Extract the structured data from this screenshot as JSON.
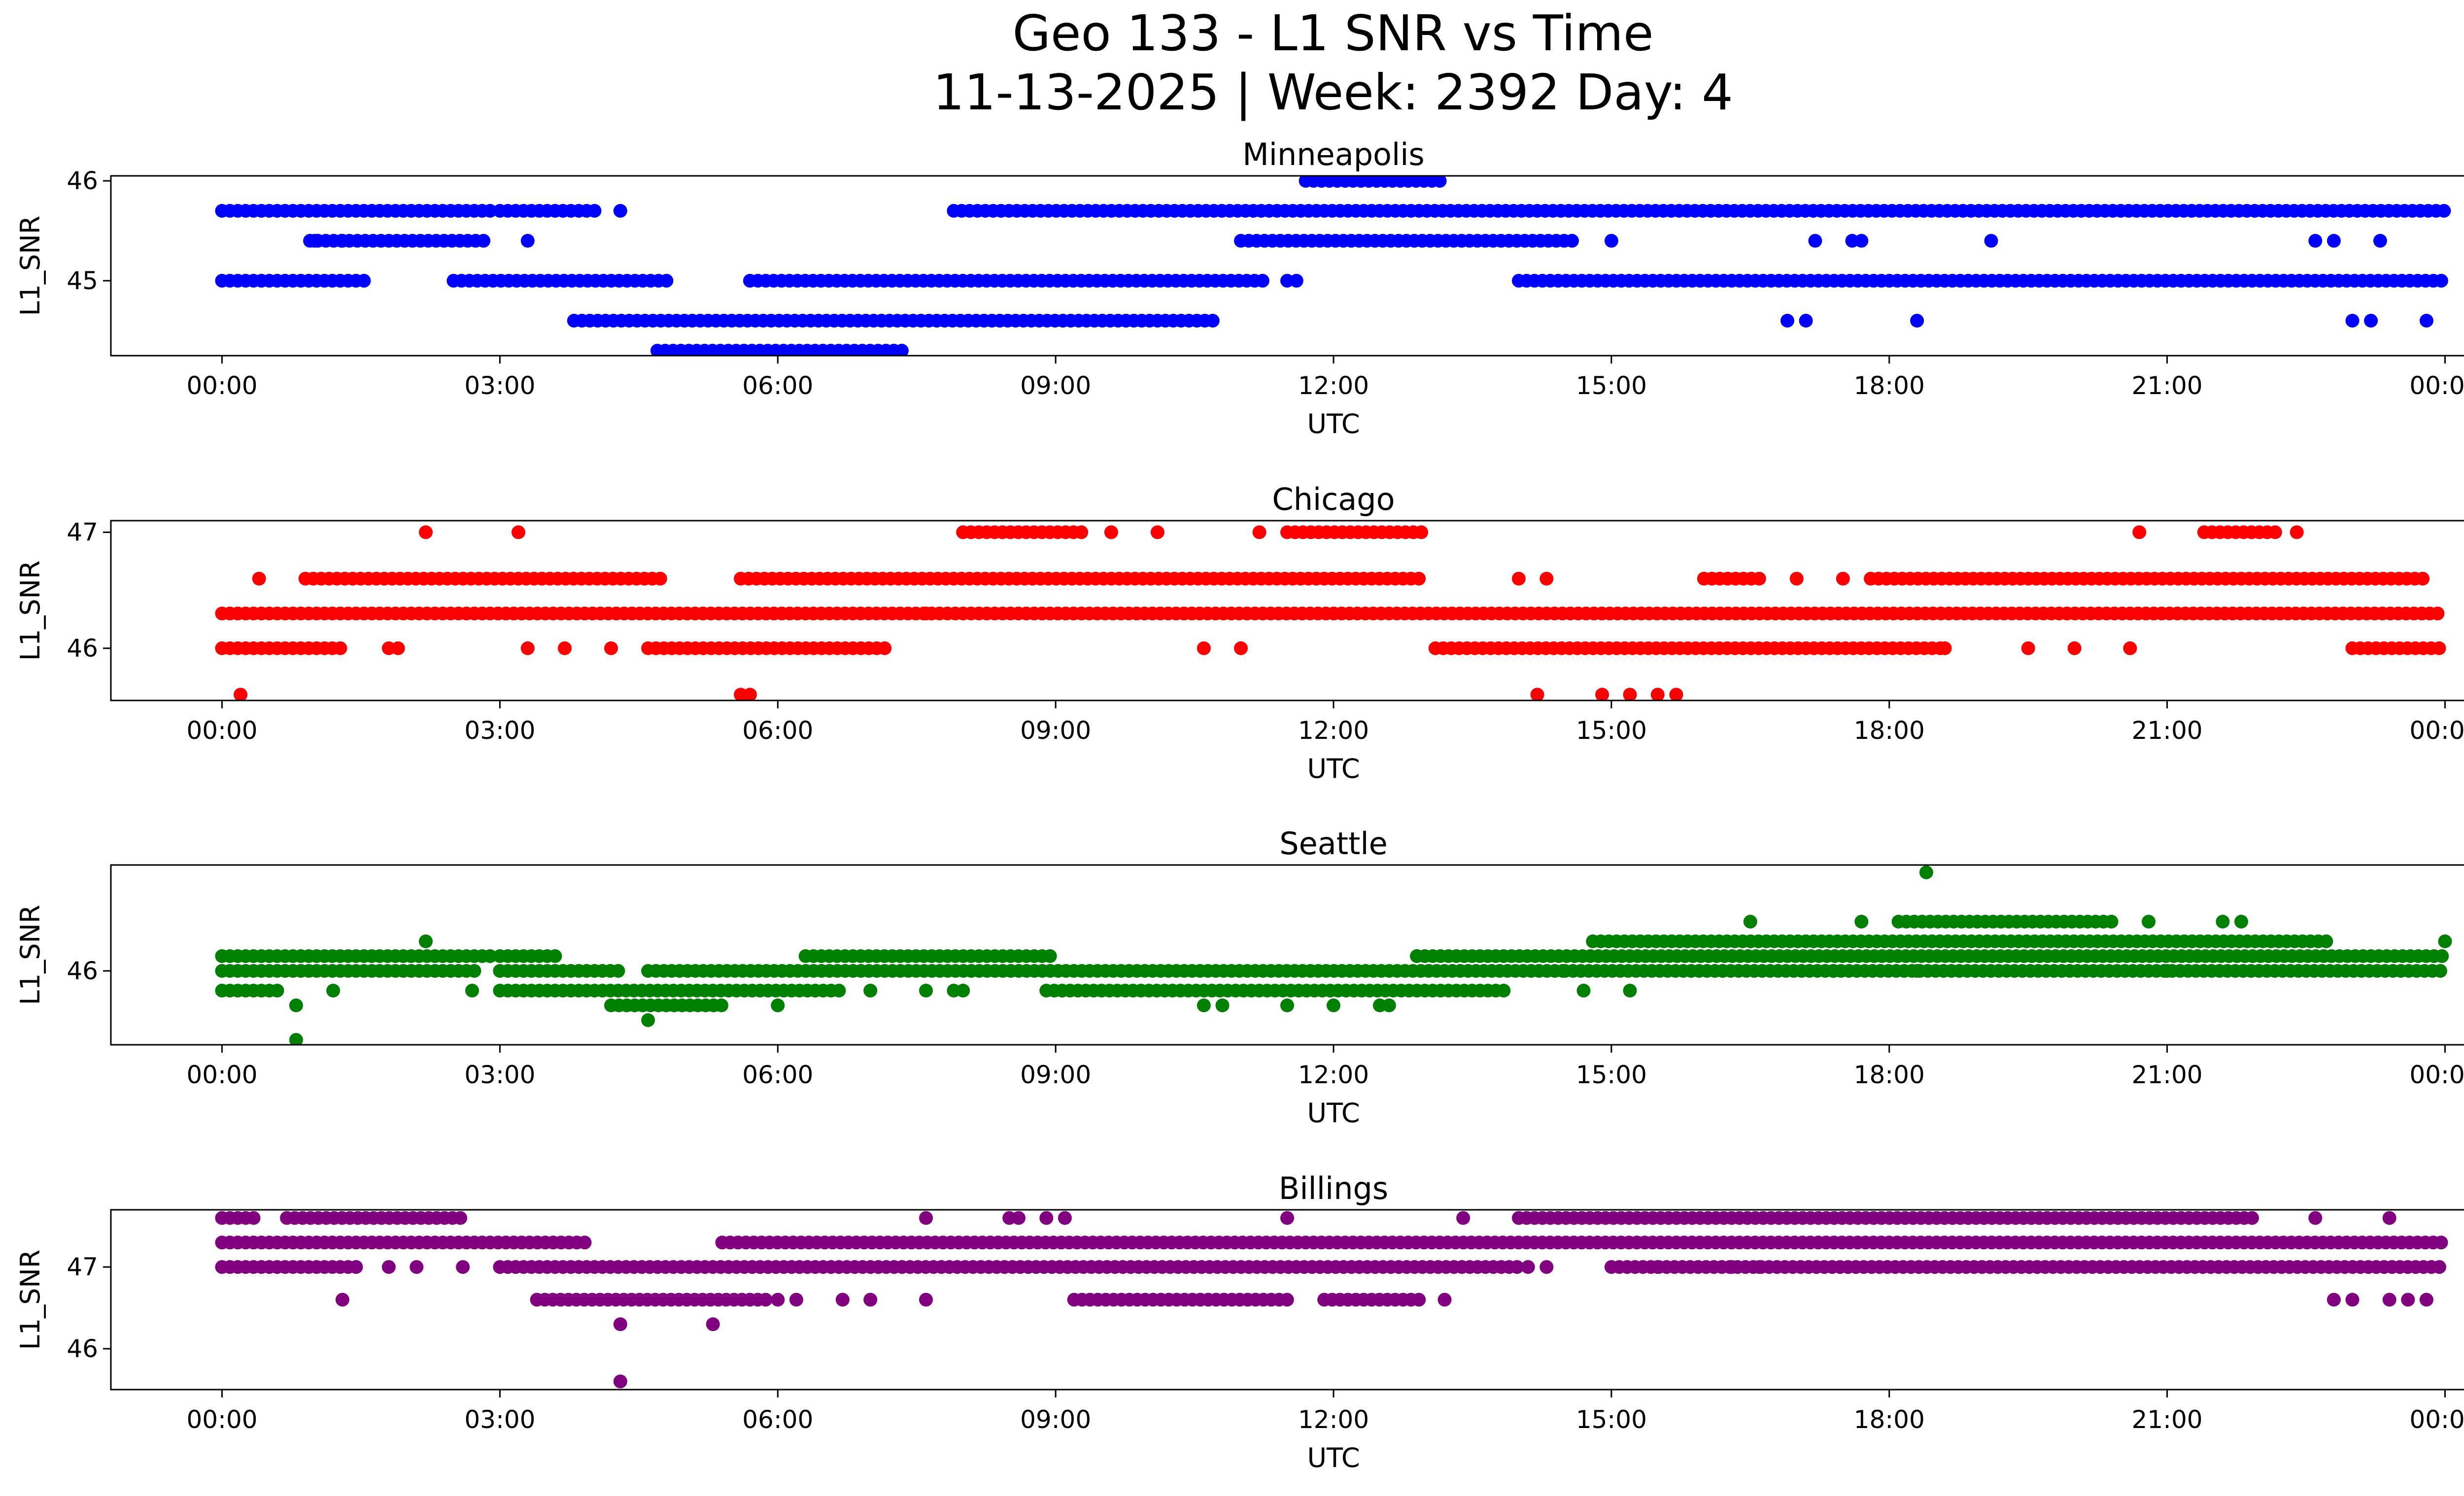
{
  "title_line1": "Geo 133 - L1 SNR vs Time",
  "title_line2": "11-13-2025 | Week: 2392 Day: 4",
  "chart_data": [
    {
      "type": "scatter",
      "title": "Minneapolis",
      "xlabel": "UTC",
      "ylabel": "L1_SNR",
      "color": "#0000ff",
      "x_ticks": [
        "00:00",
        "03:00",
        "06:00",
        "09:00",
        "12:00",
        "15:00",
        "18:00",
        "21:00",
        "00:00"
      ],
      "x_range_hours": [
        -1.2,
        25.2
      ],
      "y_ticks": [
        45,
        46
      ],
      "y_range": [
        44.25,
        46.05
      ],
      "bands": [
        {
          "y": 45.7,
          "segments": [
            [
              0,
              2.9
            ],
            [
              3.0,
              4.1
            ],
            [
              7.9,
              24
            ]
          ]
        },
        {
          "y": 45.0,
          "segments": [
            [
              0,
              1.6
            ],
            [
              2.5,
              4.8
            ],
            [
              5.7,
              11.3
            ],
            [
              14.0,
              24
            ]
          ]
        },
        {
          "y": 45.4,
          "segments": [
            [
              0.95,
              2.9
            ],
            [
              11.0,
              14.6
            ]
          ]
        },
        {
          "y": 44.6,
          "segments": [
            [
              3.8,
              10.7
            ]
          ]
        },
        {
          "y": 44.3,
          "segments": [
            [
              4.7,
              7.4
            ]
          ]
        },
        {
          "y": 46.0,
          "segments": [
            [
              11.7,
              13.2
            ]
          ]
        }
      ],
      "scatter": [
        [
          1.0,
          45.4
        ],
        [
          1.3,
          45.4
        ],
        [
          3.3,
          45.4
        ],
        [
          4.3,
          45.7
        ],
        [
          11.5,
          45.0
        ],
        [
          11.6,
          45.0
        ],
        [
          15.0,
          45.4
        ],
        [
          17.2,
          45.4
        ],
        [
          17.6,
          45.4
        ],
        [
          17.7,
          45.4
        ],
        [
          19.1,
          45.4
        ],
        [
          22.6,
          45.4
        ],
        [
          22.8,
          45.4
        ],
        [
          23.3,
          45.4
        ],
        [
          16.9,
          44.6
        ],
        [
          17.1,
          44.6
        ],
        [
          18.3,
          44.6
        ],
        [
          23.0,
          44.6
        ],
        [
          23.2,
          44.6
        ],
        [
          23.8,
          44.6
        ]
      ]
    },
    {
      "type": "scatter",
      "title": "Chicago",
      "xlabel": "UTC",
      "ylabel": "L1_SNR",
      "color": "#ff0000",
      "x_ticks": [
        "00:00",
        "03:00",
        "06:00",
        "09:00",
        "12:00",
        "15:00",
        "18:00",
        "21:00",
        "00:00"
      ],
      "x_range_hours": [
        -1.2,
        25.2
      ],
      "y_ticks": [
        46,
        47
      ],
      "y_range": [
        45.55,
        47.1
      ],
      "bands": [
        {
          "y": 46.3,
          "segments": [
            [
              0,
              24
            ]
          ]
        },
        {
          "y": 46.6,
          "segments": [
            [
              0.9,
              4.8
            ],
            [
              5.6,
              13.0
            ],
            [
              16.0,
              16.6
            ],
            [
              17.8,
              23.8
            ]
          ]
        },
        {
          "y": 46.0,
          "segments": [
            [
              0,
              1.3
            ],
            [
              4.6,
              7.2
            ],
            [
              13.1,
              18.6
            ],
            [
              23.0,
              24
            ]
          ]
        },
        {
          "y": 47.0,
          "segments": [
            [
              8.0,
              9.3
            ],
            [
              11.5,
              13.0
            ],
            [
              21.4,
              22.2
            ]
          ]
        }
      ],
      "scatter": [
        [
          0.4,
          46.6
        ],
        [
          2.2,
          47.0
        ],
        [
          3.2,
          47.0
        ],
        [
          9.6,
          47.0
        ],
        [
          10.1,
          47.0
        ],
        [
          11.2,
          47.0
        ],
        [
          20.7,
          47.0
        ],
        [
          22.4,
          47.0
        ],
        [
          1.8,
          46.0
        ],
        [
          1.9,
          46.0
        ],
        [
          3.3,
          46.0
        ],
        [
          3.7,
          46.0
        ],
        [
          4.2,
          46.0
        ],
        [
          10.6,
          46.0
        ],
        [
          11.0,
          46.0
        ],
        [
          19.5,
          46.0
        ],
        [
          20.0,
          46.0
        ],
        [
          20.6,
          46.0
        ],
        [
          18.6,
          46.0
        ],
        [
          0.2,
          45.6
        ],
        [
          5.6,
          45.6
        ],
        [
          5.7,
          45.6
        ],
        [
          14.2,
          45.6
        ],
        [
          14.9,
          45.6
        ],
        [
          15.2,
          45.6
        ],
        [
          15.5,
          45.6
        ],
        [
          15.7,
          45.6
        ],
        [
          14.0,
          46.6
        ],
        [
          14.3,
          46.6
        ],
        [
          17.0,
          46.6
        ],
        [
          17.5,
          46.6
        ],
        [
          7.6,
          46.3
        ]
      ]
    },
    {
      "type": "scatter",
      "title": "Seattle",
      "xlabel": "UTC",
      "ylabel": "L1_SNR",
      "color": "#008000",
      "x_ticks": [
        "00:00",
        "03:00",
        "06:00",
        "09:00",
        "12:00",
        "15:00",
        "18:00",
        "21:00",
        "00:00"
      ],
      "x_range_hours": [
        -1.2,
        25.2
      ],
      "y_ticks": [
        46
      ],
      "y_range": [
        44.5,
        48.15
      ],
      "bands": [
        {
          "y": 46.3,
          "segments": [
            [
              0,
              2.9
            ],
            [
              3.0,
              3.6
            ],
            [
              6.3,
              9.0
            ],
            [
              12.9,
              24
            ]
          ]
        },
        {
          "y": 46.0,
          "segments": [
            [
              0,
              2.8
            ],
            [
              3.0,
              4.3
            ],
            [
              4.6,
              14.5
            ],
            [
              14.5,
              24
            ]
          ]
        },
        {
          "y": 45.6,
          "segments": [
            [
              0,
              0.6
            ],
            [
              3.0,
              6.7
            ],
            [
              8.9,
              13.9
            ]
          ]
        },
        {
          "y": 45.3,
          "segments": [
            [
              4.2,
              5.4
            ]
          ]
        },
        {
          "y": 46.6,
          "segments": [
            [
              14.8,
              22.8
            ]
          ]
        },
        {
          "y": 47.0,
          "segments": [
            [
              18.1,
              20.4
            ]
          ]
        }
      ],
      "scatter": [
        [
          2.2,
          46.6
        ],
        [
          0.8,
          45.3
        ],
        [
          0.8,
          44.6
        ],
        [
          4.6,
          45.0
        ],
        [
          6.0,
          45.3
        ],
        [
          10.6,
          45.3
        ],
        [
          10.8,
          45.3
        ],
        [
          11.5,
          45.3
        ],
        [
          12.0,
          45.3
        ],
        [
          12.5,
          45.3
        ],
        [
          12.6,
          45.3
        ],
        [
          1.2,
          45.6
        ],
        [
          2.7,
          45.6
        ],
        [
          7.0,
          45.6
        ],
        [
          7.6,
          45.6
        ],
        [
          7.9,
          45.6
        ],
        [
          8.0,
          45.6
        ],
        [
          15.2,
          45.6
        ],
        [
          16.5,
          47.0
        ],
        [
          17.7,
          47.0
        ],
        [
          18.4,
          48.0
        ],
        [
          20.8,
          47.0
        ],
        [
          21.6,
          47.0
        ],
        [
          21.8,
          47.0
        ],
        [
          12.9,
          46.3
        ],
        [
          14.7,
          45.6
        ],
        [
          16.2,
          46.0
        ],
        [
          17.4,
          46.0
        ],
        [
          18.3,
          46.0
        ],
        [
          21.0,
          46.0
        ],
        [
          24.0,
          46.6
        ]
      ]
    },
    {
      "type": "scatter",
      "title": "Billings",
      "xlabel": "UTC",
      "ylabel": "L1_SNR",
      "color": "#800080",
      "x_ticks": [
        "00:00",
        "03:00",
        "06:00",
        "09:00",
        "12:00",
        "15:00",
        "18:00",
        "21:00",
        "00:00"
      ],
      "x_range_hours": [
        -1.2,
        25.2
      ],
      "y_ticks": [
        46,
        47
      ],
      "y_range": [
        45.5,
        47.7
      ],
      "bands": [
        {
          "y": 47.3,
          "segments": [
            [
              0,
              4.0
            ],
            [
              5.4,
              24
            ]
          ]
        },
        {
          "y": 47.0,
          "segments": [
            [
              0,
              1.5
            ],
            [
              3.0,
              14.0
            ],
            [
              15.0,
              24
            ]
          ]
        },
        {
          "y": 47.6,
          "segments": [
            [
              0,
              0.4
            ],
            [
              0.7,
              2.6
            ],
            [
              14.0,
              22.0
            ]
          ]
        },
        {
          "y": 46.6,
          "segments": [
            [
              3.4,
              5.9
            ],
            [
              9.2,
              11.5
            ],
            [
              11.9,
              13.0
            ]
          ]
        }
      ],
      "scatter": [
        [
          1.3,
          46.6
        ],
        [
          6.0,
          46.6
        ],
        [
          6.2,
          46.6
        ],
        [
          6.7,
          46.6
        ],
        [
          7.0,
          46.6
        ],
        [
          7.6,
          46.6
        ],
        [
          13.2,
          46.6
        ],
        [
          22.8,
          46.6
        ],
        [
          23.0,
          46.6
        ],
        [
          23.4,
          46.6
        ],
        [
          23.6,
          46.6
        ],
        [
          23.8,
          46.6
        ],
        [
          4.3,
          46.3
        ],
        [
          5.3,
          46.3
        ],
        [
          4.3,
          45.6
        ],
        [
          7.6,
          47.6
        ],
        [
          8.5,
          47.6
        ],
        [
          8.6,
          47.6
        ],
        [
          8.9,
          47.6
        ],
        [
          9.1,
          47.6
        ],
        [
          11.5,
          47.6
        ],
        [
          13.4,
          47.6
        ],
        [
          22.6,
          47.6
        ],
        [
          23.4,
          47.6
        ],
        [
          1.8,
          47.0
        ],
        [
          2.1,
          47.0
        ],
        [
          2.6,
          47.0
        ],
        [
          14.1,
          47.0
        ],
        [
          14.3,
          47.0
        ],
        [
          15.5,
          47.0
        ],
        [
          16.3,
          47.0
        ],
        [
          16.6,
          47.0
        ]
      ]
    }
  ]
}
